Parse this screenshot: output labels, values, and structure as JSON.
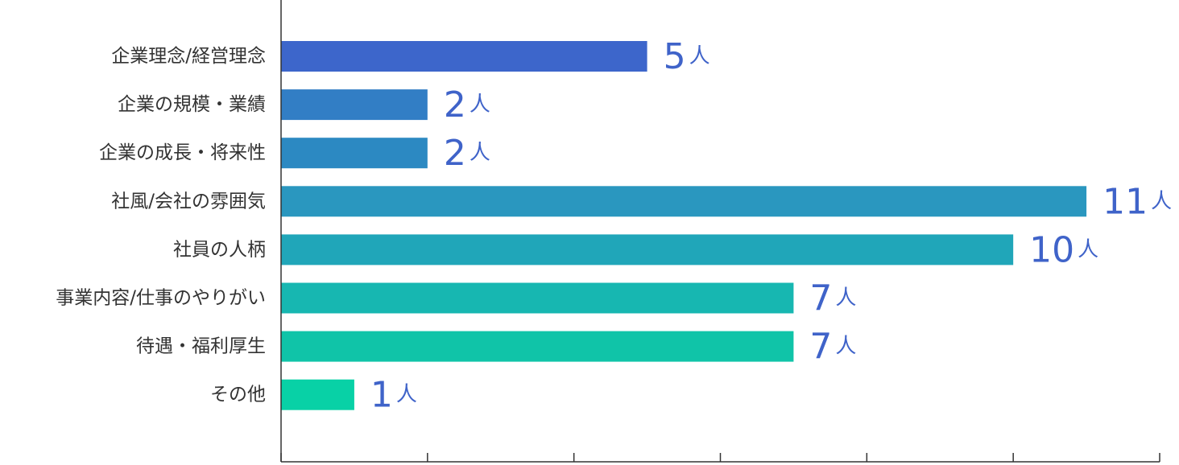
{
  "chart_data": {
    "type": "bar",
    "orientation": "horizontal",
    "categories": [
      "企業理念/経営理念",
      "企業の規模・業績",
      "企業の成長・将来性",
      "社風/会社の雰囲気",
      "社員の人柄",
      "事業内容/仕事のやりがい",
      "待遇・福利厚生",
      "その他"
    ],
    "values": [
      5,
      2,
      2,
      11,
      10,
      7,
      7,
      1
    ],
    "value_unit": "人",
    "xlim": [
      0,
      12
    ],
    "grid": false,
    "legend": "none",
    "colors": [
      "#3d66cb",
      "#327ec5",
      "#2c89c2",
      "#2a97bf",
      "#20a6b9",
      "#17b7b1",
      "#10c4a8",
      "#08d1a6"
    ],
    "label_color": "#3f63c9"
  }
}
